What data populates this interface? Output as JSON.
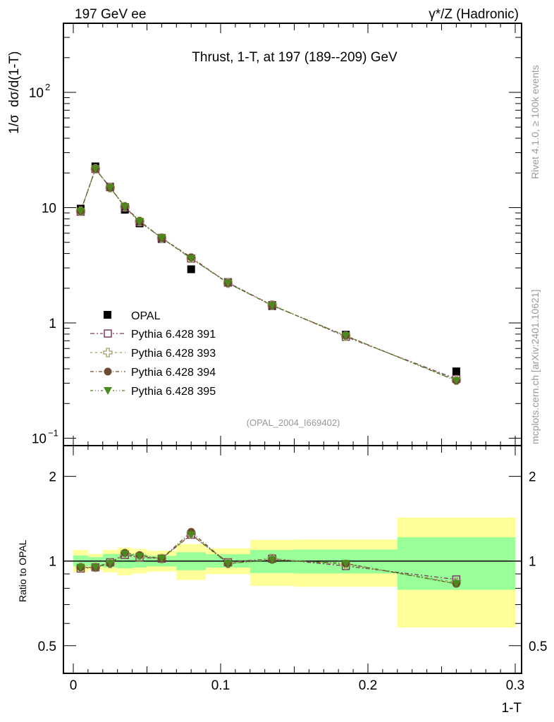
{
  "header": {
    "left": "197 GeV ee",
    "right": "γ*/Z (Hadronic)"
  },
  "side_labels": {
    "rivet": "Rivet 4.1.0, ≥ 100k events",
    "mcplots": "mcplots.cern.ch [arXiv:2401.10621]"
  },
  "chart_data": {
    "type": "scatter",
    "title": "Thrust, 1-T, at 197 (189--209) GeV",
    "analysis_id": "(OPAL_2004_I669402)",
    "xlabel": "1-T",
    "ylabel": "1/σ  dσ/d(1-T)",
    "ratio_ylabel": "Ratio to OPAL",
    "xlim": [
      0,
      0.3
    ],
    "ylim": [
      0.1,
      400
    ],
    "yscale": "log",
    "ratio_ylim": [
      0.344,
      2.56
    ],
    "x_ticks": [
      "0",
      "0.1",
      "0.2",
      "0.3"
    ],
    "y_ticks": [
      {
        "base": "10",
        "exp": "2"
      },
      {
        "base": "10",
        "exp": ""
      },
      {
        "base": "1",
        "exp": ""
      },
      {
        "base": "10",
        "exp": "−1"
      }
    ],
    "ratio_ticks": [
      "2",
      "1",
      "0.5"
    ],
    "legend_position": "middle-left",
    "bin_edges": [
      0,
      0.01,
      0.02,
      0.03,
      0.04,
      0.05,
      0.07,
      0.09,
      0.12,
      0.15,
      0.22,
      0.3
    ],
    "x": [
      0.005,
      0.015,
      0.025,
      0.035,
      0.045,
      0.06,
      0.08,
      0.105,
      0.135,
      0.185,
      0.26
    ],
    "data": {
      "name": "OPAL",
      "values": [
        9.8,
        22.8,
        15.2,
        9.6,
        7.3,
        5.35,
        2.92,
        2.26,
        1.4,
        0.79,
        0.38
      ],
      "stat_band": [
        [
          0.957,
          1.047
        ],
        [
          0.96,
          1.033
        ],
        [
          0.948,
          1.059
        ],
        [
          0.942,
          1.059
        ],
        [
          0.948,
          1.059
        ],
        [
          0.957,
          1.043
        ],
        [
          0.928,
          1.074
        ],
        [
          0.948,
          1.057
        ],
        [
          0.906,
          1.095
        ],
        [
          0.903,
          1.099
        ],
        [
          0.79,
          1.214
        ]
      ],
      "total_band": [
        [
          0.912,
          1.095
        ],
        [
          0.929,
          1.059
        ],
        [
          0.912,
          1.095
        ],
        [
          0.889,
          1.116
        ],
        [
          0.903,
          1.105
        ],
        [
          0.917,
          1.088
        ],
        [
          0.856,
          1.149
        ],
        [
          0.898,
          1.109
        ],
        [
          0.816,
          1.189
        ],
        [
          0.81,
          1.193
        ],
        [
          0.58,
          1.428
        ]
      ]
    },
    "series": [
      {
        "name": "Pythia 6.428 391",
        "color": "#7a3d5c",
        "marker": "open-square",
        "ratio": [
          0.94,
          0.95,
          0.99,
          1.05,
          1.03,
          1.02,
          1.24,
          0.99,
          1.02,
          0.96,
          0.86
        ]
      },
      {
        "name": "Pythia 6.428 393",
        "color": "#a39a6c",
        "marker": "open-cross",
        "ratio": [
          0.95,
          0.95,
          0.98,
          1.06,
          1.04,
          1.02,
          1.25,
          0.98,
          1.02,
          0.97,
          0.84
        ]
      },
      {
        "name": "Pythia 6.428 394",
        "color": "#6e4a2e",
        "marker": "circle",
        "ratio": [
          0.95,
          0.95,
          0.98,
          1.07,
          1.05,
          1.02,
          1.27,
          0.98,
          1.01,
          0.98,
          0.83
        ]
      },
      {
        "name": "Pythia 6.428 395",
        "color": "#4b8a1c",
        "marker": "triangle-down",
        "ratio": [
          0.95,
          0.95,
          0.98,
          1.06,
          1.04,
          1.02,
          1.24,
          0.98,
          1.01,
          0.98,
          0.83
        ]
      }
    ],
    "colors": {
      "total_band": "#ffff99",
      "stat_band": "#99ff99",
      "data": "#000000"
    }
  }
}
